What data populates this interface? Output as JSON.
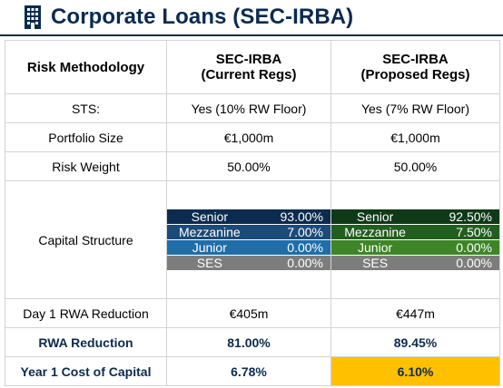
{
  "header": {
    "title": "Corporate Loans (SEC-IRBA)",
    "icon": "building-icon"
  },
  "columns": {
    "label": "Risk Methodology",
    "current": {
      "line1": "SEC-IRBA",
      "line2": "(Current Regs)"
    },
    "proposed": {
      "line1": "SEC-IRBA",
      "line2": "(Proposed Regs)"
    }
  },
  "rows": {
    "sts": {
      "label": "STS:",
      "current": "Yes (10% RW Floor)",
      "proposed": "Yes (7% RW Floor)"
    },
    "portfolio": {
      "label": "Portfolio Size",
      "current": "€1,000m",
      "proposed": "€1,000m"
    },
    "risk_weight": {
      "label": "Risk Weight",
      "current": "50.00%",
      "proposed": "50.00%"
    },
    "capital_structure": {
      "label": "Capital Structure",
      "current": [
        {
          "name": "Senior",
          "value": "93.00%"
        },
        {
          "name": "Mezzanine",
          "value": "7.00%"
        },
        {
          "name": "Junior",
          "value": "0.00%"
        },
        {
          "name": "SES",
          "value": "0.00%"
        }
      ],
      "proposed": [
        {
          "name": "Senior",
          "value": "92.50%"
        },
        {
          "name": "Mezzanine",
          "value": "7.50%"
        },
        {
          "name": "Junior",
          "value": "0.00%"
        },
        {
          "name": "SES",
          "value": "0.00%"
        }
      ]
    },
    "day1_rwa": {
      "label": "Day 1 RWA Reduction",
      "current": "€405m",
      "proposed": "€447m"
    },
    "rwa_reduction": {
      "label": "RWA Reduction",
      "current": "81.00%",
      "proposed": "89.45%"
    },
    "cost_of_capital": {
      "label": "Year 1 Cost of Capital",
      "current": "6.78%",
      "proposed": "6.10%"
    }
  },
  "colors": {
    "navy": "#0b2b4f",
    "highlight": "#ffc000",
    "current_tranches": [
      "#0b2b4f",
      "#1c4a79",
      "#1f6ea8",
      "#7d7d7d"
    ],
    "proposed_tranches": [
      "#0f3a18",
      "#225e1f",
      "#3d8526",
      "#7d7d7d"
    ]
  }
}
